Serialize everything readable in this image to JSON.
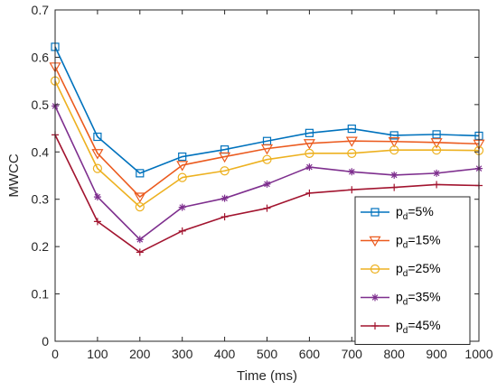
{
  "chart_data": {
    "type": "line",
    "xlabel": "Time (ms)",
    "ylabel": "MWCC",
    "xlim": [
      0,
      1000
    ],
    "ylim": [
      0,
      0.7
    ],
    "x_ticks": [
      "0",
      "100",
      "200",
      "300",
      "400",
      "500",
      "600",
      "700",
      "800",
      "900",
      "1000"
    ],
    "y_ticks": [
      "0",
      "0.1",
      "0.2",
      "0.3",
      "0.4",
      "0.5",
      "0.6",
      "0.7"
    ],
    "x": [
      0,
      100,
      200,
      300,
      400,
      500,
      600,
      700,
      800,
      900,
      1000
    ],
    "grid": false,
    "legend_position": "lower-right",
    "series": [
      {
        "name": "p_d=5%",
        "legend_main": "p",
        "legend_sub": "d",
        "legend_tail": "=5%",
        "color": "#0072BD",
        "marker": "square",
        "values": [
          0.622,
          0.432,
          0.355,
          0.39,
          0.405,
          0.423,
          0.44,
          0.449,
          0.435,
          0.437,
          0.434
        ]
      },
      {
        "name": "p_d=15%",
        "legend_main": "p",
        "legend_sub": "d",
        "legend_tail": "=15%",
        "color": "#EB5A1E",
        "marker": "triangle-down",
        "values": [
          0.58,
          0.397,
          0.305,
          0.372,
          0.39,
          0.407,
          0.418,
          0.423,
          0.422,
          0.42,
          0.417
        ]
      },
      {
        "name": "p_d=25%",
        "legend_main": "p",
        "legend_sub": "d",
        "legend_tail": "=25%",
        "color": "#EDB120",
        "marker": "circle",
        "values": [
          0.55,
          0.365,
          0.284,
          0.346,
          0.36,
          0.384,
          0.397,
          0.397,
          0.404,
          0.404,
          0.403
        ]
      },
      {
        "name": "p_d=35%",
        "legend_main": "p",
        "legend_sub": "d",
        "legend_tail": "=35%",
        "color": "#7E2F8E",
        "marker": "asterisk",
        "values": [
          0.497,
          0.305,
          0.215,
          0.283,
          0.302,
          0.332,
          0.368,
          0.358,
          0.351,
          0.355,
          0.365
        ]
      },
      {
        "name": "p_d=45%",
        "legend_main": "p",
        "legend_sub": "d",
        "legend_tail": "=45%",
        "color": "#A2142F",
        "marker": "plus",
        "values": [
          0.436,
          0.253,
          0.188,
          0.233,
          0.263,
          0.281,
          0.313,
          0.32,
          0.325,
          0.331,
          0.329
        ]
      }
    ]
  }
}
